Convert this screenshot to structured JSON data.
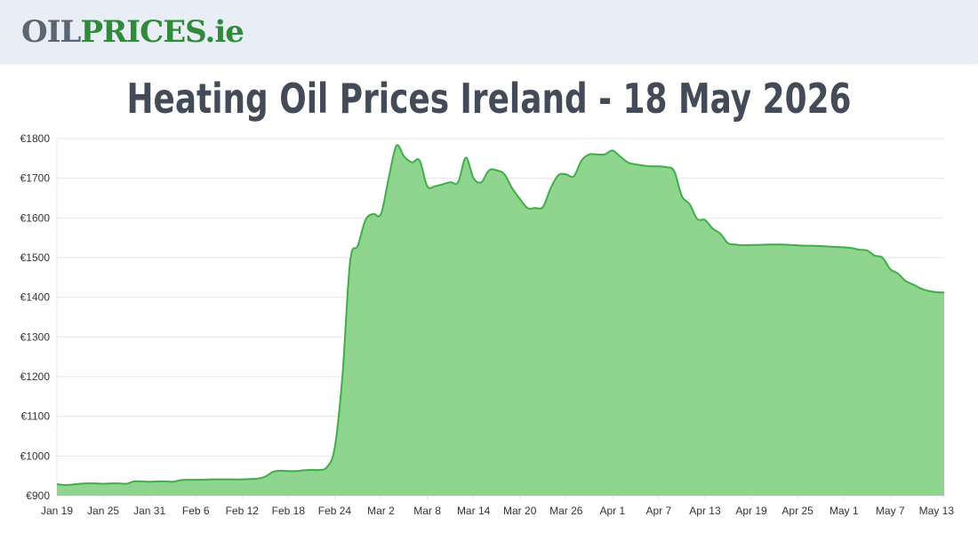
{
  "header": {
    "logo_part1": "OIL",
    "logo_part2": "PRICES",
    "logo_part3": ".ie"
  },
  "page_title": "Heating Oil Prices Ireland - 18 May 2026",
  "colors": {
    "line": "#3fae48",
    "fill": "#8fd58f",
    "grid": "#e6e6e6",
    "axis_text": "#333333",
    "title": "#434a58",
    "logo_grey": "#5b6673",
    "logo_green": "#2f8a3a"
  },
  "chart_data": {
    "type": "area",
    "title": "",
    "xlabel": "",
    "ylabel": "",
    "ylim": [
      900,
      1800
    ],
    "grid": true,
    "legend": "none",
    "y_ticks": [
      "€900",
      "€1000",
      "€1100",
      "€1200",
      "€1300",
      "€1400",
      "€1500",
      "€1600",
      "€1700",
      "€1800"
    ],
    "x_ticks": [
      "Jan 19",
      "Jan 25",
      "Jan 31",
      "Feb 6",
      "Feb 12",
      "Feb 18",
      "Feb 24",
      "Mar 2",
      "Mar 8",
      "Mar 14",
      "Mar 20",
      "Mar 26",
      "Apr 1",
      "Apr 7",
      "Apr 13",
      "Apr 19",
      "Apr 25",
      "May 1",
      "May 7",
      "May 13"
    ],
    "start_date": "2026-01-19",
    "series": [
      {
        "values": [
          929,
          927,
          928,
          930,
          931,
          931,
          930,
          931,
          931,
          930,
          936,
          936,
          935,
          936,
          936,
          935,
          939,
          940,
          940,
          940,
          941,
          941,
          941,
          941,
          941,
          942,
          943,
          948,
          960,
          963,
          962,
          962,
          964,
          965,
          965,
          972,
          1020,
          1200,
          1490,
          1530,
          1595,
          1610,
          1610,
          1700,
          1782,
          1755,
          1740,
          1745,
          1680,
          1680,
          1685,
          1690,
          1690,
          1752,
          1700,
          1690,
          1720,
          1720,
          1710,
          1675,
          1648,
          1625,
          1625,
          1628,
          1675,
          1708,
          1710,
          1705,
          1745,
          1760,
          1760,
          1760,
          1770,
          1755,
          1740,
          1735,
          1732,
          1730,
          1730,
          1728,
          1718,
          1655,
          1635,
          1597,
          1595,
          1573,
          1560,
          1536,
          1533,
          1531,
          1532,
          1532,
          1533,
          1533,
          1533,
          1532,
          1531,
          1530,
          1530,
          1529,
          1528,
          1527,
          1526,
          1524,
          1520,
          1518,
          1505,
          1500,
          1471,
          1460,
          1441,
          1432,
          1422,
          1416,
          1413,
          1412
        ]
      }
    ]
  }
}
